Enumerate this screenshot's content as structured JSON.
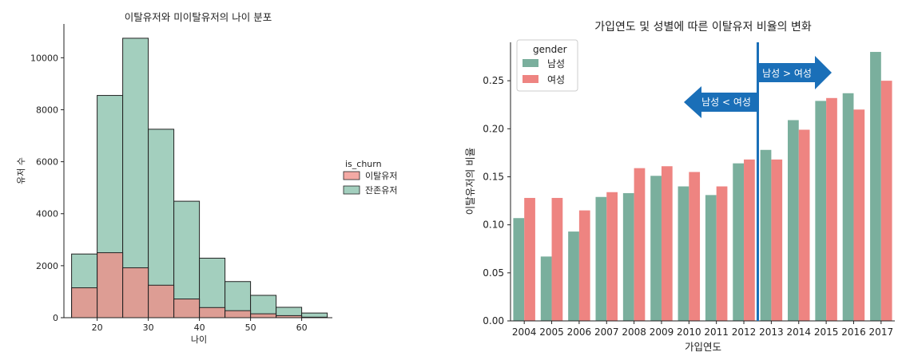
{
  "chart_data": [
    {
      "type": "histogram",
      "title": "이탈유저와 미이탈유저의 나이 분포",
      "xlabel": "나이",
      "ylabel": "유저 수",
      "xlim": [
        13.5,
        66
      ],
      "ylim": [
        0,
        11300
      ],
      "xticks": [
        20,
        30,
        40,
        50,
        60
      ],
      "yticks": [
        0,
        2000,
        4000,
        6000,
        8000,
        10000
      ],
      "bin_edges": [
        15,
        20,
        25,
        30,
        35,
        40,
        45,
        50,
        55,
        60,
        65
      ],
      "legend_title": "is_churn",
      "legend_position": "right",
      "series": [
        {
          "name": "이탈유저",
          "color": "#f08c86",
          "values": [
            1150,
            2500,
            1920,
            1250,
            720,
            390,
            270,
            150,
            80,
            20
          ]
        },
        {
          "name": "잔존유저",
          "color": "#a3cfbe",
          "values": [
            2450,
            8550,
            10750,
            7250,
            4480,
            2290,
            1390,
            860,
            400,
            180
          ]
        }
      ]
    },
    {
      "type": "bar",
      "title": "가입연도 및 성별에 따른 이탈유저 비율의 변화",
      "xlabel": "가입연도",
      "ylabel": "이탈유저의 비율",
      "categories": [
        "2004",
        "2005",
        "2006",
        "2007",
        "2008",
        "2009",
        "2010",
        "2011",
        "2012",
        "2013",
        "2014",
        "2015",
        "2016",
        "2017"
      ],
      "ylim": [
        0,
        0.29
      ],
      "yticks": [
        "0.00",
        "0.05",
        "0.10",
        "0.15",
        "0.20",
        "0.25"
      ],
      "legend_title": "gender",
      "legend_position": "top-left",
      "series": [
        {
          "name": "남성",
          "color": "#7aaf9d",
          "values": [
            0.107,
            0.067,
            0.093,
            0.129,
            0.133,
            0.151,
            0.14,
            0.131,
            0.164,
            0.178,
            0.209,
            0.229,
            0.237,
            0.28
          ]
        },
        {
          "name": "여성",
          "color": "#ee8481",
          "values": [
            0.128,
            0.128,
            0.115,
            0.134,
            0.159,
            0.161,
            0.155,
            0.14,
            0.168,
            0.168,
            0.199,
            0.232,
            0.22,
            0.25
          ]
        }
      ],
      "divider_after_category": "2012",
      "annotations": [
        {
          "text": "남성 < 여성",
          "direction": "left"
        },
        {
          "text": "남성 > 여성",
          "direction": "right"
        }
      ],
      "annotation_color": "#1a6fb8"
    }
  ]
}
